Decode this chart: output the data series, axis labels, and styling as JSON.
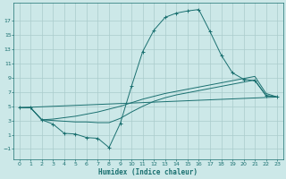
{
  "bg_color": "#cce8e8",
  "grid_color": "#aacccc",
  "line_color": "#1a7070",
  "xlabel": "Humidex (Indice chaleur)",
  "xlim": [
    -0.5,
    23.5
  ],
  "ylim": [
    -2.5,
    19.5
  ],
  "xticks": [
    0,
    1,
    2,
    3,
    4,
    5,
    6,
    7,
    8,
    9,
    10,
    11,
    12,
    13,
    14,
    15,
    16,
    17,
    18,
    19,
    20,
    21,
    22,
    23
  ],
  "yticks": [
    -1,
    1,
    3,
    5,
    7,
    9,
    11,
    13,
    15,
    17
  ],
  "main_x": [
    0,
    1,
    2,
    3,
    4,
    5,
    6,
    7,
    8,
    9,
    10,
    11,
    12,
    13,
    14,
    15,
    16,
    17,
    18,
    19,
    20,
    21,
    22,
    23
  ],
  "main_y": [
    4.8,
    4.8,
    3.1,
    2.5,
    1.2,
    1.1,
    0.6,
    0.5,
    -0.8,
    2.6,
    7.8,
    12.7,
    15.7,
    17.5,
    18.1,
    18.4,
    18.6,
    15.5,
    12.2,
    9.7,
    8.8,
    8.6,
    6.5,
    6.3
  ],
  "line2_x": [
    0,
    1,
    2,
    3,
    4,
    5,
    6,
    7,
    8,
    9,
    10,
    11,
    12,
    13,
    14,
    15,
    16,
    17,
    18,
    19,
    20,
    21,
    22,
    23
  ],
  "line2_y": [
    4.8,
    4.8,
    3.1,
    3.2,
    3.4,
    3.6,
    3.9,
    4.2,
    4.6,
    5.0,
    5.5,
    6.0,
    6.4,
    6.8,
    7.1,
    7.4,
    7.7,
    8.0,
    8.3,
    8.6,
    8.9,
    9.2,
    6.8,
    6.3
  ],
  "line3_x": [
    0,
    1,
    2,
    3,
    4,
    5,
    6,
    7,
    8,
    9,
    10,
    11,
    12,
    13,
    14,
    15,
    16,
    17,
    18,
    19,
    20,
    21,
    22,
    23
  ],
  "line3_y": [
    4.8,
    4.8,
    3.1,
    3.0,
    2.9,
    2.8,
    2.8,
    2.7,
    2.7,
    3.3,
    4.2,
    5.0,
    5.7,
    6.2,
    6.6,
    6.9,
    7.2,
    7.5,
    7.8,
    8.1,
    8.4,
    8.7,
    6.5,
    6.3
  ],
  "line4_x": [
    0,
    23
  ],
  "line4_y": [
    4.8,
    6.3
  ]
}
